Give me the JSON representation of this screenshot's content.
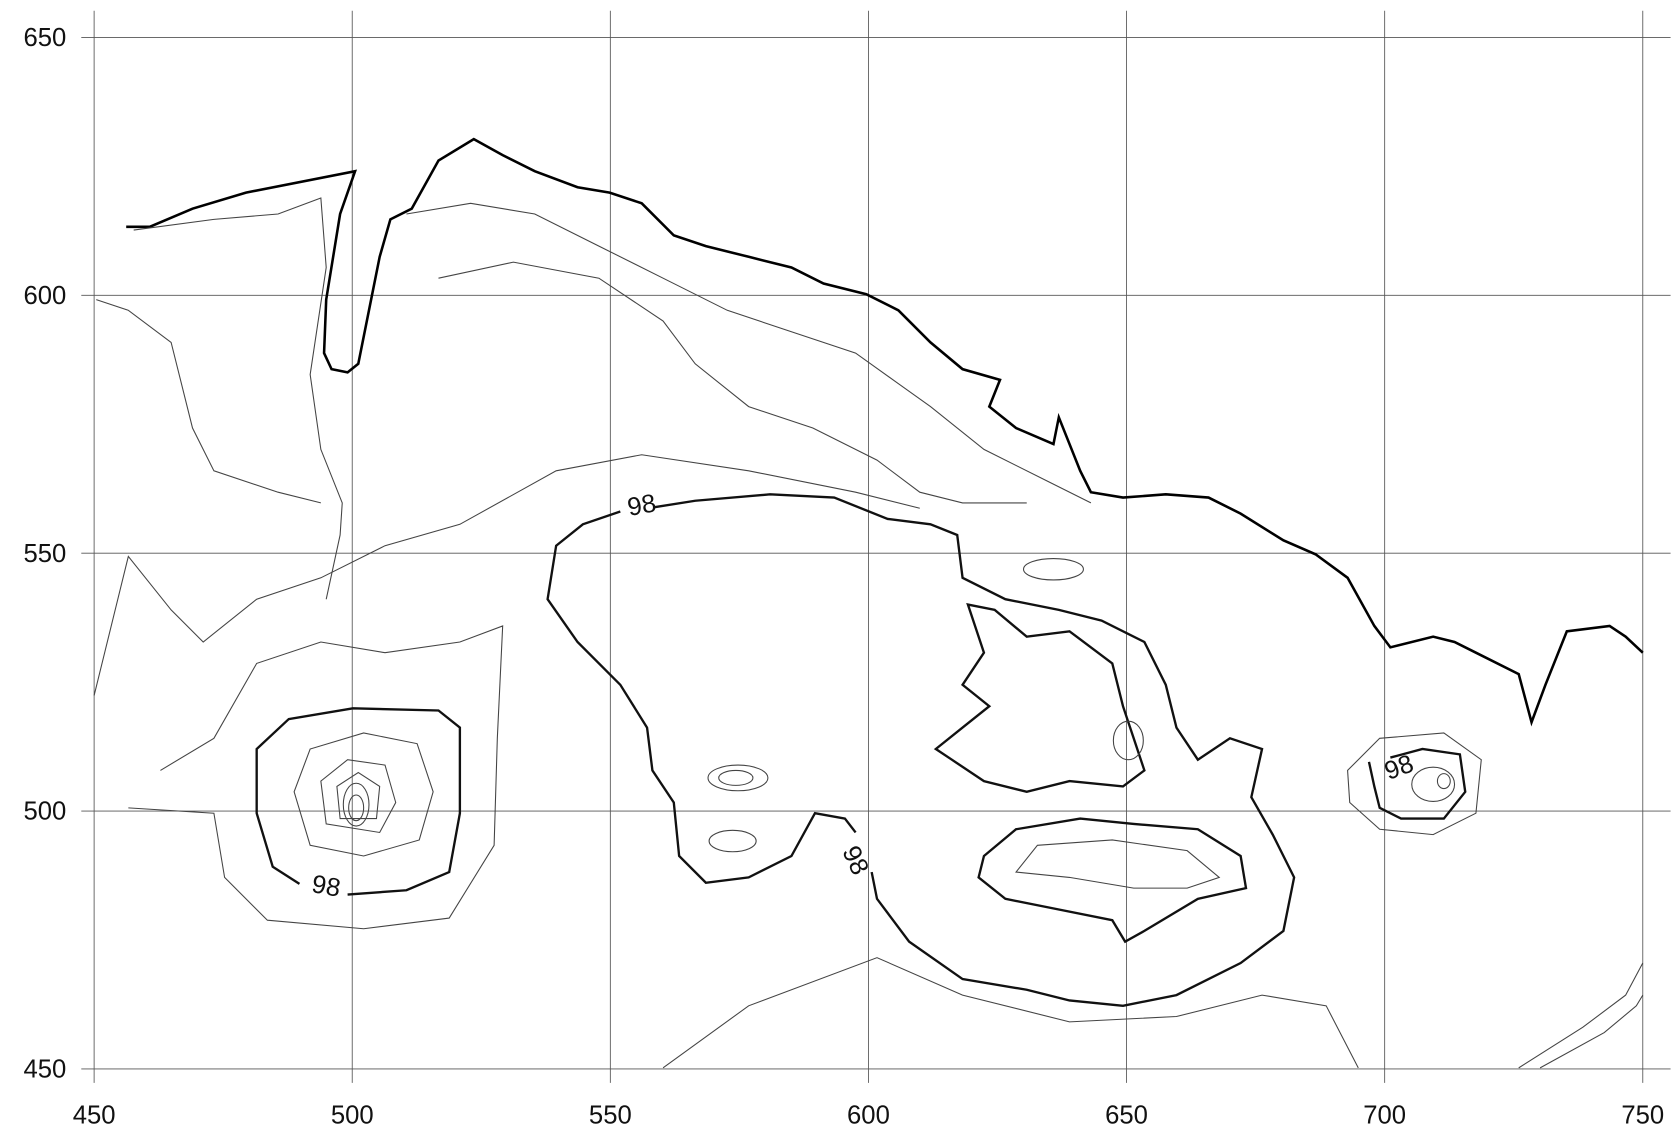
{
  "map": {
    "type": "contour",
    "xlim": [
      450,
      750
    ],
    "ylim": [
      450,
      650
    ],
    "xticks": [
      450,
      500,
      550,
      600,
      650,
      700,
      750
    ],
    "yticks": [
      450,
      500,
      550,
      600,
      650
    ],
    "contour_labels": [
      98,
      98,
      98,
      98
    ]
  }
}
